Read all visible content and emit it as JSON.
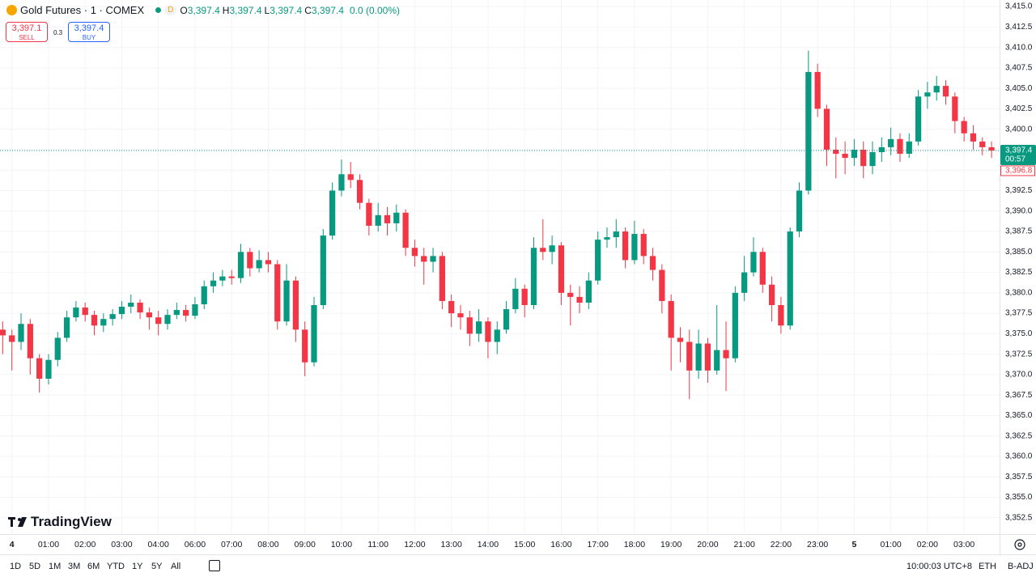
{
  "header": {
    "symbol": "Gold Futures · 1 · COMEX",
    "badge": "D",
    "ohlc": [
      {
        "label": "O",
        "value": "3,397.4"
      },
      {
        "label": "H",
        "value": "3,397.4"
      },
      {
        "label": "L",
        "value": "3,397.4"
      },
      {
        "label": "C",
        "value": "3,397.4"
      }
    ],
    "change": "0.0 (0.00%)"
  },
  "trade": {
    "sell_price": "3,397.1",
    "sell_label": "SELL",
    "spread": "0.3",
    "buy_price": "3,397.4",
    "buy_label": "BUY"
  },
  "logo": "TradingView",
  "toolbar": {
    "ranges": [
      "1D",
      "5D",
      "1M",
      "3M",
      "6M",
      "YTD",
      "1Y",
      "5Y",
      "All"
    ],
    "clock": "10:00:03 UTC+8",
    "session": "ETH",
    "adjustment": "B-ADJ"
  },
  "chart_data": {
    "type": "candlestick",
    "up_color": "#089981",
    "down_color": "#f23645",
    "grid": true,
    "ylim": [
      3350.5,
      3415.8
    ],
    "yticks": [
      {
        "value": 3352.5,
        "label": "3,352.5"
      },
      {
        "value": 3355,
        "label": "3,355.0"
      },
      {
        "value": 3357.5,
        "label": "3,357.5"
      },
      {
        "value": 3360,
        "label": "3,360.0"
      },
      {
        "value": 3362.5,
        "label": "3,362.5"
      },
      {
        "value": 3365,
        "label": "3,365.0"
      },
      {
        "value": 3367.5,
        "label": "3,367.5"
      },
      {
        "value": 3370,
        "label": "3,370.0"
      },
      {
        "value": 3372.5,
        "label": "3,372.5"
      },
      {
        "value": 3375,
        "label": "3,375.0"
      },
      {
        "value": 3377.5,
        "label": "3,377.5"
      },
      {
        "value": 3380,
        "label": "3,380.0"
      },
      {
        "value": 3382.5,
        "label": "3,382.5"
      },
      {
        "value": 3385,
        "label": "3,385.0"
      },
      {
        "value": 3387.5,
        "label": "3,387.5"
      },
      {
        "value": 3390,
        "label": "3,390.0"
      },
      {
        "value": 3392.5,
        "label": "3,392.5"
      },
      {
        "value": 3395,
        "label": "3,395.0"
      },
      {
        "value": 3397.5,
        "label": "3,397.5"
      },
      {
        "value": 3400,
        "label": "3,400.0"
      },
      {
        "value": 3402.5,
        "label": "3,402.5"
      },
      {
        "value": 3405,
        "label": "3,405.0"
      },
      {
        "value": 3407.5,
        "label": "3,407.5"
      },
      {
        "value": 3410,
        "label": "3,410.0"
      },
      {
        "value": 3412.5,
        "label": "3,412.5"
      },
      {
        "value": 3415,
        "label": "3,415.0"
      }
    ],
    "xticks": [
      {
        "value": 1,
        "label": "4"
      },
      {
        "value": 5,
        "label": "01:00"
      },
      {
        "value": 9,
        "label": "02:00"
      },
      {
        "value": 13,
        "label": "03:00"
      },
      {
        "value": 17,
        "label": "04:00"
      },
      {
        "value": 21,
        "label": "06:00"
      },
      {
        "value": 25,
        "label": "07:00"
      },
      {
        "value": 29,
        "label": "08:00"
      },
      {
        "value": 33,
        "label": "09:00"
      },
      {
        "value": 37,
        "label": "10:00"
      },
      {
        "value": 41,
        "label": "11:00"
      },
      {
        "value": 45,
        "label": "12:00"
      },
      {
        "value": 49,
        "label": "13:00"
      },
      {
        "value": 53,
        "label": "14:00"
      },
      {
        "value": 57,
        "label": "15:00"
      },
      {
        "value": 61,
        "label": "16:00"
      },
      {
        "value": 65,
        "label": "17:00"
      },
      {
        "value": 69,
        "label": "18:00"
      },
      {
        "value": 73,
        "label": "19:00"
      },
      {
        "value": 77,
        "label": "20:00"
      },
      {
        "value": 81,
        "label": "21:00"
      },
      {
        "value": 85,
        "label": "22:00"
      },
      {
        "value": 89,
        "label": "23:00"
      },
      {
        "value": 93,
        "label": "5"
      },
      {
        "value": 97,
        "label": "01:00"
      },
      {
        "value": 101,
        "label": "02:00"
      },
      {
        "value": 105,
        "label": "03:00"
      }
    ],
    "open": [
      3375.5,
      3374.8,
      3374.0,
      3376.2,
      3372.0,
      3369.5,
      3371.8,
      3374.5,
      3377.0,
      3378.2,
      3377.3,
      3376.0,
      3376.8,
      3377.4,
      3378.3,
      3378.8,
      3377.6,
      3377.0,
      3376.2,
      3377.3,
      3377.9,
      3377.2,
      3378.6,
      3380.8,
      3381.5,
      3382.0,
      3381.8,
      3385.0,
      3383.0,
      3384.0,
      3383.5,
      3376.5,
      3381.5,
      3375.5,
      3371.5,
      3378.5,
      3387.0,
      3392.5,
      3394.5,
      3393.8,
      3391.0,
      3388.2,
      3389.5,
      3388.5,
      3389.8,
      3385.5,
      3384.5,
      3383.8,
      3384.5,
      3379.0,
      3377.5,
      3377.0,
      3375.0,
      3376.5,
      3374.0,
      3375.5,
      3378.0,
      3380.5,
      3378.5,
      3385.5,
      3385.0,
      3385.8,
      3380.0,
      3379.5,
      3378.8,
      3381.5,
      3386.5,
      3386.8,
      3387.5,
      3384.0,
      3387.2,
      3384.5,
      3382.8,
      3379.0,
      3374.5,
      3374.0,
      3370.5,
      3373.8,
      3370.5,
      3373.0,
      3372.0,
      3380.0,
      3382.5,
      3385.0,
      3381.0,
      3378.5,
      3376.0,
      3387.5,
      3392.5,
      3407.0,
      3402.5,
      3397.5,
      3397.0,
      3396.5,
      3397.5,
      3395.5,
      3397.2,
      3397.8,
      3398.8,
      3397.0,
      3398.5,
      3404.0,
      3404.5,
      3405.3,
      3404.0,
      3401.0,
      3399.5,
      3398.5,
      3397.8
    ],
    "high": [
      3376.5,
      3375.5,
      3377.5,
      3376.8,
      3372.5,
      3372.5,
      3375.2,
      3377.8,
      3379.0,
      3378.8,
      3377.8,
      3377.5,
      3378.0,
      3379.0,
      3379.8,
      3379.2,
      3378.2,
      3377.8,
      3378.0,
      3378.8,
      3378.5,
      3379.5,
      3381.5,
      3382.5,
      3382.8,
      3382.8,
      3386.0,
      3385.5,
      3385.2,
      3385.0,
      3384.0,
      3383.5,
      3382.0,
      3376.5,
      3379.5,
      3387.8,
      3393.5,
      3396.3,
      3396.0,
      3394.5,
      3391.5,
      3391.0,
      3390.5,
      3390.8,
      3390.2,
      3386.5,
      3385.5,
      3385.5,
      3385.0,
      3379.8,
      3378.5,
      3377.8,
      3378.0,
      3377.0,
      3376.5,
      3379.0,
      3381.8,
      3381.0,
      3386.8,
      3389.0,
      3387.0,
      3386.2,
      3381.0,
      3380.8,
      3382.5,
      3387.5,
      3388.0,
      3389.0,
      3388.0,
      3388.8,
      3387.8,
      3385.5,
      3383.5,
      3379.8,
      3375.8,
      3375.5,
      3375.5,
      3374.5,
      3378.5,
      3376.5,
      3380.8,
      3384.5,
      3386.8,
      3385.5,
      3382.0,
      3379.5,
      3388.0,
      3393.5,
      3409.6,
      3408.0,
      3403.0,
      3399.0,
      3398.5,
      3398.8,
      3398.5,
      3398.5,
      3399.0,
      3400.2,
      3399.5,
      3399.5,
      3404.8,
      3405.8,
      3406.5,
      3406.0,
      3404.5,
      3401.5,
      3400.5,
      3399.0,
      3398.5
    ],
    "low": [
      3372.5,
      3370.5,
      3373.0,
      3370.0,
      3367.8,
      3368.8,
      3371.0,
      3374.0,
      3376.5,
      3376.5,
      3374.8,
      3375.2,
      3376.0,
      3376.8,
      3377.5,
      3376.8,
      3375.5,
      3374.8,
      3375.5,
      3376.8,
      3376.5,
      3376.8,
      3378.0,
      3380.0,
      3380.8,
      3381.0,
      3381.2,
      3382.0,
      3382.5,
      3382.5,
      3375.5,
      3376.0,
      3374.0,
      3369.8,
      3371.0,
      3378.0,
      3386.5,
      3391.8,
      3392.8,
      3390.2,
      3387.0,
      3387.5,
      3387.0,
      3387.5,
      3384.5,
      3383.2,
      3381.0,
      3382.5,
      3378.0,
      3375.8,
      3375.5,
      3373.5,
      3374.0,
      3372.0,
      3372.5,
      3375.0,
      3377.5,
      3377.0,
      3378.0,
      3384.0,
      3383.5,
      3378.5,
      3376.0,
      3377.5,
      3378.0,
      3381.0,
      3385.5,
      3385.5,
      3383.0,
      3383.5,
      3383.5,
      3381.5,
      3377.5,
      3370.5,
      3371.5,
      3367.0,
      3369.5,
      3369.0,
      3370.0,
      3368.0,
      3371.5,
      3379.0,
      3382.0,
      3380.0,
      3376.5,
      3375.0,
      3375.5,
      3386.8,
      3392.0,
      3401.5,
      3395.5,
      3394.0,
      3394.5,
      3395.5,
      3394.0,
      3394.5,
      3396.0,
      3396.8,
      3396.0,
      3396.5,
      3398.0,
      3402.5,
      3403.5,
      3403.0,
      3399.5,
      3398.5,
      3397.5,
      3396.8,
      3396.5
    ],
    "close": [
      3374.8,
      3374.0,
      3376.2,
      3372.0,
      3369.5,
      3371.8,
      3374.5,
      3377.0,
      3378.2,
      3377.3,
      3376.0,
      3376.8,
      3377.4,
      3378.3,
      3378.8,
      3377.6,
      3377.0,
      3376.2,
      3377.3,
      3377.9,
      3377.2,
      3378.6,
      3380.8,
      3381.5,
      3382.0,
      3381.8,
      3385.0,
      3383.0,
      3384.0,
      3383.5,
      3376.5,
      3381.5,
      3375.5,
      3371.5,
      3378.5,
      3387.0,
      3392.5,
      3394.5,
      3393.8,
      3391.0,
      3388.2,
      3389.5,
      3388.5,
      3389.8,
      3385.5,
      3384.5,
      3383.8,
      3384.5,
      3379.0,
      3377.5,
      3377.0,
      3375.0,
      3376.5,
      3374.0,
      3375.5,
      3378.0,
      3380.5,
      3378.5,
      3385.5,
      3385.0,
      3385.8,
      3380.0,
      3379.5,
      3378.8,
      3381.5,
      3386.5,
      3386.8,
      3387.5,
      3384.0,
      3387.2,
      3384.5,
      3382.8,
      3379.0,
      3374.5,
      3374.0,
      3370.5,
      3373.8,
      3370.5,
      3373.0,
      3372.0,
      3380.0,
      3382.5,
      3385.0,
      3381.0,
      3378.5,
      3376.0,
      3387.5,
      3392.5,
      3407.0,
      3402.5,
      3397.5,
      3397.0,
      3396.5,
      3397.5,
      3395.5,
      3397.2,
      3397.8,
      3398.8,
      3397.0,
      3398.5,
      3404.0,
      3404.5,
      3405.3,
      3404.0,
      3401.0,
      3399.5,
      3398.5,
      3397.8,
      3397.4
    ],
    "last_price": {
      "value": 3397.4,
      "label": "3,397.4"
    },
    "countdown": "00:57",
    "bid_price": {
      "value": 3396.8,
      "label": "3,396.8"
    }
  }
}
